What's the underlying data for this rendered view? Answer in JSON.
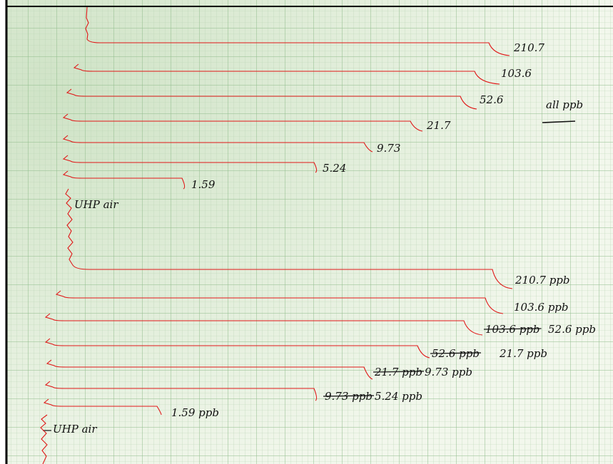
{
  "top_run": {
    "note": "all ppb",
    "peaks": [
      "210.7",
      "103.6",
      "52.6",
      "21.7",
      "9.73",
      "5.24",
      "1.59"
    ],
    "baseline_label": "UHP air"
  },
  "bottom_run": {
    "peaks": [
      {
        "label": "210.7 ppb"
      },
      {
        "label": "103.6 ppb"
      },
      {
        "crossed_out": "103.6 ppb",
        "label": "52.6 ppb"
      },
      {
        "crossed_out": "52.6 ppb",
        "label": "21.7 ppb"
      },
      {
        "crossed_out": "21.7 ppb",
        "label": "9.73 ppb"
      },
      {
        "crossed_out": "9.73 ppb",
        "label": "5.24 ppb"
      },
      {
        "label": "1.59 ppb"
      }
    ],
    "baseline_label": "UHP air"
  }
}
